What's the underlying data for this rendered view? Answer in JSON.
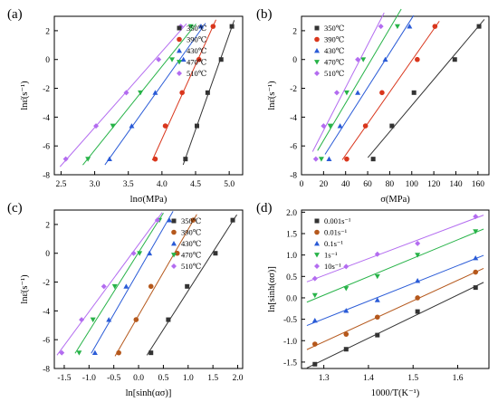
{
  "chart_data": [
    {
      "panel": "(a)",
      "type": "scatter",
      "trendlines": true,
      "xlabel": "lnσ(MPa)",
      "ylabel": "lnε̇(s⁻¹)",
      "xlim": [
        2.4,
        5.2
      ],
      "ylim": [
        -8,
        3
      ],
      "xticks": [
        2.5,
        3.0,
        3.5,
        4.0,
        4.5,
        5.0
      ],
      "xtick_labels": [
        "2.5",
        "3.0",
        "3.5",
        "4.0",
        "4.5",
        "5.0"
      ],
      "yticks": [
        -8,
        -6,
        -4,
        -2,
        0,
        2
      ],
      "ytick_labels": [
        "-8",
        "-6",
        "-4",
        "-2",
        "0",
        "2"
      ],
      "legend_position": "top-right",
      "series": [
        {
          "name": "350℃",
          "color": "#333333",
          "marker": "square",
          "x": [
            4.35,
            4.52,
            4.68,
            4.88,
            5.04
          ],
          "y": [
            -6.91,
            -4.61,
            -2.3,
            0.0,
            2.3
          ]
        },
        {
          "name": "390℃",
          "color": "#d9361c",
          "marker": "circle",
          "x": [
            3.9,
            4.05,
            4.3,
            4.55,
            4.76
          ],
          "y": [
            -6.91,
            -4.61,
            -2.3,
            0.0,
            2.3
          ]
        },
        {
          "name": "430℃",
          "color": "#2a5bd7",
          "marker": "triangle-up",
          "x": [
            3.22,
            3.55,
            3.9,
            4.32,
            4.58
          ],
          "y": [
            -6.91,
            -4.61,
            -2.3,
            0.0,
            2.3
          ]
        },
        {
          "name": "470℃",
          "color": "#27b348",
          "marker": "triangle-down",
          "x": [
            2.9,
            3.27,
            3.68,
            4.15,
            4.43
          ],
          "y": [
            -6.91,
            -4.61,
            -2.3,
            0.0,
            2.3
          ]
        },
        {
          "name": "510℃",
          "color": "#b36cf0",
          "marker": "diamond",
          "x": [
            2.57,
            3.02,
            3.47,
            3.95,
            4.28
          ],
          "y": [
            -6.91,
            -4.61,
            -2.3,
            0.0,
            2.3
          ]
        }
      ]
    },
    {
      "panel": "(b)",
      "type": "scatter",
      "trendlines": true,
      "xlabel": "σ(MPa)",
      "ylabel": "lnε̇(s⁻¹)",
      "xlim": [
        0,
        170
      ],
      "ylim": [
        -8,
        3
      ],
      "xticks": [
        0,
        20,
        40,
        60,
        80,
        100,
        120,
        140,
        160
      ],
      "xtick_labels": [
        "0",
        "20",
        "40",
        "60",
        "80",
        "100",
        "120",
        "140",
        "160"
      ],
      "yticks": [
        -8,
        -6,
        -4,
        -2,
        0,
        2
      ],
      "ytick_labels": [
        "-8",
        "-6",
        "-4",
        "-2",
        "0",
        "2"
      ],
      "legend_position": "top-left",
      "series": [
        {
          "name": "350℃",
          "color": "#333333",
          "marker": "square",
          "x": [
            65,
            82,
            102,
            139,
            161
          ],
          "y": [
            -6.91,
            -4.61,
            -2.3,
            0.0,
            2.3
          ]
        },
        {
          "name": "390℃",
          "color": "#d9361c",
          "marker": "circle",
          "x": [
            41,
            58,
            73,
            105,
            121
          ],
          "y": [
            -6.91,
            -4.61,
            -2.3,
            0.0,
            2.3
          ]
        },
        {
          "name": "430℃",
          "color": "#2a5bd7",
          "marker": "triangle-up",
          "x": [
            25,
            35,
            51,
            76,
            98
          ],
          "y": [
            -6.91,
            -4.61,
            -2.3,
            0.0,
            2.3
          ]
        },
        {
          "name": "470℃",
          "color": "#27b348",
          "marker": "triangle-down",
          "x": [
            18,
            26,
            41,
            56,
            87
          ],
          "y": [
            -6.91,
            -4.61,
            -2.3,
            0.0,
            2.3
          ]
        },
        {
          "name": "510℃",
          "color": "#b36cf0",
          "marker": "diamond",
          "x": [
            13,
            20,
            32,
            51,
            72
          ],
          "y": [
            -6.91,
            -4.61,
            -2.3,
            0.0,
            2.3
          ]
        }
      ]
    },
    {
      "panel": "(c)",
      "type": "scatter",
      "trendlines": true,
      "xlabel": "ln[sinh(ασ)]",
      "ylabel": "lnε̇(s⁻¹)",
      "xlim": [
        -1.7,
        2.1
      ],
      "ylim": [
        -8,
        3
      ],
      "xticks": [
        -1.5,
        -1.0,
        -0.5,
        0.0,
        0.5,
        1.0,
        1.5,
        2.0
      ],
      "xtick_labels": [
        "-1.5",
        "-1.0",
        "-0.5",
        "0.0",
        "0.5",
        "1.0",
        "1.5",
        "2.0"
      ],
      "yticks": [
        -8,
        -6,
        -4,
        -2,
        0,
        2
      ],
      "ytick_labels": [
        "-8",
        "-6",
        "-4",
        "-2",
        "0",
        "2"
      ],
      "legend_position": "top-right",
      "series": [
        {
          "name": "350℃",
          "color": "#333333",
          "marker": "square",
          "x": [
            0.25,
            0.6,
            0.98,
            1.55,
            1.9
          ],
          "y": [
            -6.91,
            -4.61,
            -2.3,
            0.0,
            2.3
          ]
        },
        {
          "name": "390℃",
          "color": "#b5581c",
          "marker": "circle",
          "x": [
            -0.4,
            -0.05,
            0.25,
            0.78,
            1.1
          ],
          "y": [
            -6.91,
            -4.61,
            -2.3,
            0.0,
            2.3
          ]
        },
        {
          "name": "430℃",
          "color": "#2a5bd7",
          "marker": "triangle-up",
          "x": [
            -0.88,
            -0.6,
            -0.25,
            0.22,
            0.62
          ],
          "y": [
            -6.91,
            -4.61,
            -2.3,
            0.0,
            2.3
          ]
        },
        {
          "name": "470℃",
          "color": "#27b348",
          "marker": "triangle-down",
          "x": [
            -1.2,
            -0.92,
            -0.48,
            0.02,
            0.42
          ],
          "y": [
            -6.91,
            -4.61,
            -2.3,
            0.0,
            2.3
          ]
        },
        {
          "name": "510℃",
          "color": "#b36cf0",
          "marker": "diamond",
          "x": [
            -1.55,
            -1.15,
            -0.7,
            -0.1,
            0.38
          ],
          "y": [
            -6.91,
            -4.61,
            -2.3,
            0.0,
            2.3
          ]
        }
      ]
    },
    {
      "panel": "(d)",
      "type": "scatter",
      "trendlines": true,
      "xlabel": "1000/T(K⁻¹)",
      "ylabel": "ln[sinh(ασ)]",
      "xlim": [
        1.25,
        1.67
      ],
      "ylim": [
        -1.65,
        2.05
      ],
      "xticks": [
        1.3,
        1.4,
        1.5,
        1.6
      ],
      "xtick_labels": [
        "1.3",
        "1.4",
        "1.5",
        "1.6"
      ],
      "yticks": [
        -1.5,
        -1.0,
        -0.5,
        0.0,
        0.5,
        1.0,
        1.5,
        2.0
      ],
      "ytick_labels": [
        "-1.5",
        "-1.0",
        "-0.5",
        "0.0",
        "0.5",
        "1.0",
        "1.5",
        "2.0"
      ],
      "legend_position": "top-left",
      "series": [
        {
          "name": "0.001s⁻¹",
          "color": "#333333",
          "marker": "square",
          "x": [
            1.28,
            1.35,
            1.42,
            1.51,
            1.64
          ],
          "y": [
            -1.55,
            -1.2,
            -0.87,
            -0.32,
            0.24
          ]
        },
        {
          "name": "0.01s⁻¹",
          "color": "#b5581c",
          "marker": "circle",
          "x": [
            1.28,
            1.35,
            1.42,
            1.51,
            1.64
          ],
          "y": [
            -1.08,
            -0.85,
            -0.45,
            0.0,
            0.6
          ]
        },
        {
          "name": "0.1s⁻¹",
          "color": "#2a5bd7",
          "marker": "triangle-up",
          "x": [
            1.28,
            1.35,
            1.42,
            1.51,
            1.64
          ],
          "y": [
            -0.53,
            -0.3,
            -0.05,
            0.4,
            0.93
          ]
        },
        {
          "name": "1s⁻¹",
          "color": "#27b348",
          "marker": "triangle-down",
          "x": [
            1.28,
            1.35,
            1.42,
            1.51,
            1.64
          ],
          "y": [
            0.06,
            0.22,
            0.5,
            1.0,
            1.55
          ]
        },
        {
          "name": "10s⁻¹",
          "color": "#b36cf0",
          "marker": "diamond",
          "x": [
            1.28,
            1.35,
            1.42,
            1.51,
            1.64
          ],
          "y": [
            0.45,
            0.73,
            1.02,
            1.27,
            1.9
          ]
        }
      ]
    }
  ]
}
